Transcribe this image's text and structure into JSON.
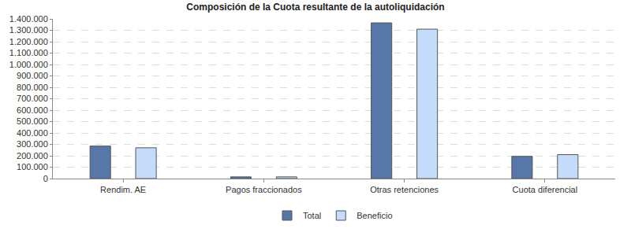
{
  "chart_data": {
    "type": "bar",
    "title": "Composición de la Cuota resultante de la autoliquidación",
    "categories": [
      "Rendim. AE",
      "Pagos fraccionados",
      "Otras retenciones",
      "Cuota diferencial"
    ],
    "series": [
      {
        "name": "Total",
        "color": "#5677a8",
        "values": [
          285000,
          15000,
          1365000,
          195000
        ]
      },
      {
        "name": "Beneficio",
        "color": "#c4dcfa",
        "values": [
          270000,
          15000,
          1310000,
          210000
        ]
      }
    ],
    "ylim": [
      0,
      1400000
    ],
    "yticks": [
      0,
      {
        "value": 100000,
        "label": "100.000"
      },
      {
        "value": 200000,
        "label": "200.000"
      },
      {
        "value": 300000,
        "label": "300.000"
      },
      {
        "value": 400000,
        "label": "400.000"
      },
      {
        "value": 500000,
        "label": "500.000"
      },
      {
        "value": 600000,
        "label": "600.000"
      },
      {
        "value": 700000,
        "label": "700.000"
      },
      {
        "value": 800000,
        "label": "800.000"
      },
      {
        "value": 900000,
        "label": "900.000"
      },
      {
        "value": 1000000,
        "label": "1.000.000"
      },
      {
        "value": 1100000,
        "label": "1.100.000"
      },
      {
        "value": 1200000,
        "label": "1.200.000"
      },
      {
        "value": 1300000,
        "label": "1.300.000"
      },
      {
        "value": 1400000,
        "label": "1.400.000"
      }
    ],
    "grid": true,
    "legend": "bottom"
  }
}
